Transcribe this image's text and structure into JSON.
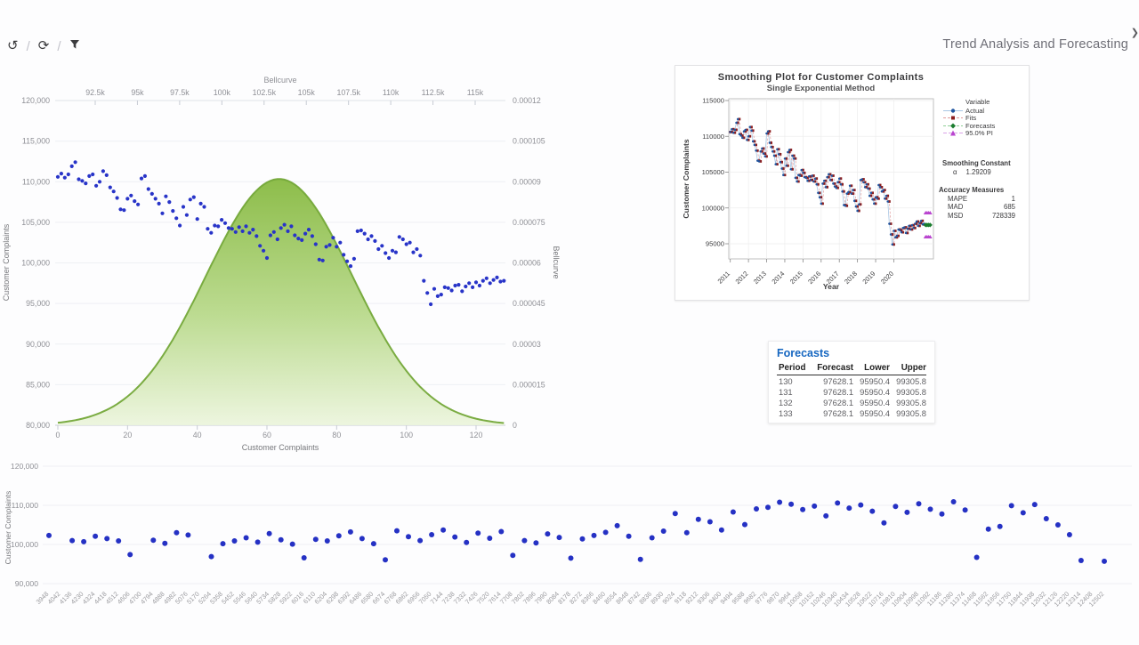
{
  "header": {
    "title": "Trend Analysis and Forecasting",
    "corner_glyph": "❯"
  },
  "toolbar": {
    "separator": "/",
    "buttons": [
      {
        "name": "reset-view",
        "glyph": "↺"
      },
      {
        "name": "refresh",
        "glyph": "⟳"
      },
      {
        "name": "filter",
        "glyph": ""
      }
    ]
  },
  "colors": {
    "dot_blue": "#2834c8",
    "grid": "#eef0f4",
    "axis_line": "#c8ccd4",
    "tick_text": "#8f9096",
    "axis_title": "#77787c",
    "bell_stroke": "#74a839",
    "bell_top": "#86b93f",
    "bell_mid": "#b8d98a",
    "bell_bottom": "#ecf5dd",
    "actual_marker": "#1f55a0",
    "actual_line": "#a9c7e4",
    "fits_marker": "#8c1d1d",
    "fits_line": "#e09c9c",
    "forecast_marker": "#1b7d2f",
    "forecast_line": "#8fcf96",
    "pi_marker": "#b944cf",
    "pi_line": "#dba3e8",
    "table_title_blue": "#1566c0"
  },
  "complaints_series": {
    "x_start": 0,
    "values": [
      110600,
      111000,
      110500,
      110900,
      111900,
      112400,
      110300,
      110100,
      109800,
      110700,
      110900,
      109500,
      110000,
      111300,
      110800,
      109300,
      108800,
      108000,
      106600,
      106500,
      107900,
      108300,
      107600,
      107200,
      110400,
      110700,
      109100,
      108500,
      107900,
      107300,
      106100,
      108200,
      107500,
      106400,
      105500,
      104600,
      106900,
      105900,
      107800,
      108100,
      105400,
      107300,
      106900,
      104200,
      103700,
      104600,
      104500,
      105300,
      104900,
      104300,
      104200,
      103800,
      104400,
      103900,
      104500,
      103700,
      104100,
      103300,
      102100,
      101500,
      100600,
      103400,
      103800,
      102900,
      104300,
      104700,
      103900,
      104500,
      103400,
      103000,
      102800,
      103600,
      104100,
      103300,
      102300,
      100400,
      100300,
      102000,
      102200,
      103100,
      102000,
      102500,
      101000,
      100200,
      99600,
      100500,
      103900,
      104000,
      103600,
      102900,
      103300,
      102700,
      101700,
      102100,
      101200,
      100600,
      101500,
      101300,
      103200,
      102900,
      102300,
      102500,
      101300,
      101700,
      100900,
      97800,
      96300,
      94900,
      96800,
      95900,
      96100,
      97000,
      96900,
      96600,
      97200,
      97300,
      96500,
      97100,
      97500,
      97000,
      97600,
      97200,
      97800,
      98100,
      97500,
      97900,
      98200,
      97700,
      97800
    ]
  },
  "chart_data": [
    {
      "type": "scatter",
      "name": "complaints-with-bellcurve",
      "series_source": "complaints_series",
      "bellcurve": {
        "mean": 63.5,
        "sd": 21,
        "peak": 9.1e-05
      },
      "top_axis": {
        "label": "Bellcurve",
        "ticks": [
          {
            "label": "92.5k",
            "v": 92500
          },
          {
            "label": "95k",
            "v": 95000
          },
          {
            "label": "97.5k",
            "v": 97500
          },
          {
            "label": "100k",
            "v": 100000
          },
          {
            "label": "102.5k",
            "v": 102500
          },
          {
            "label": "105k",
            "v": 105000
          },
          {
            "label": "107.5k",
            "v": 107500
          },
          {
            "label": "110k",
            "v": 110000
          },
          {
            "label": "112.5k",
            "v": 112500
          },
          {
            "label": "115k",
            "v": 115000
          }
        ]
      },
      "left_axis": {
        "label": "Customer Complaints",
        "range": [
          80000,
          120000
        ],
        "ticks": [
          {
            "label": "120,000",
            "v": 120000
          },
          {
            "label": "115,000",
            "v": 115000
          },
          {
            "label": "110,000",
            "v": 110000
          },
          {
            "label": "105,000",
            "v": 105000
          },
          {
            "label": "100,000",
            "v": 100000
          },
          {
            "label": "95,000",
            "v": 95000
          },
          {
            "label": "90,000",
            "v": 90000
          },
          {
            "label": "85,000",
            "v": 85000
          },
          {
            "label": "80,000",
            "v": 80000
          }
        ]
      },
      "right_axis": {
        "label": "Bellcurve",
        "range": [
          0,
          0.00012
        ],
        "ticks": [
          {
            "label": "0.00012",
            "v": 0.00012
          },
          {
            "label": "0.000105",
            "v": 0.000105
          },
          {
            "label": "0.00009",
            "v": 9e-05
          },
          {
            "label": "0.000075",
            "v": 7.5e-05
          },
          {
            "label": "0.00006",
            "v": 6e-05
          },
          {
            "label": "0.000045",
            "v": 4.5e-05
          },
          {
            "label": "0.00003",
            "v": 3e-05
          },
          {
            "label": "0.000015",
            "v": 1.5e-05
          },
          {
            "label": "0",
            "v": 0
          }
        ]
      },
      "bottom_axis": {
        "label": "Customer Complaints",
        "range": [
          0,
          128
        ],
        "ticks": [
          {
            "label": "0",
            "v": 0
          },
          {
            "label": "20",
            "v": 20
          },
          {
            "label": "40",
            "v": 40
          },
          {
            "label": "60",
            "v": 60
          },
          {
            "label": "80",
            "v": 80
          },
          {
            "label": "100",
            "v": 100
          },
          {
            "label": "120",
            "v": 120
          }
        ]
      }
    },
    {
      "type": "line-scatter",
      "name": "smoothing-plot",
      "title": "Smoothing Plot for Customer Complaints",
      "subtitle": "Single Exponential Method",
      "xlabel": "Year",
      "ylabel": "Customer Complaints",
      "actual_source": "complaints_series",
      "yticks": [
        {
          "label": "115000",
          "v": 115000
        },
        {
          "label": "110000",
          "v": 110000
        },
        {
          "label": "105000",
          "v": 105000
        },
        {
          "label": "100000",
          "v": 100000
        },
        {
          "label": "95000",
          "v": 95000
        }
      ],
      "xticks": [
        {
          "label": "2011",
          "p": 1
        },
        {
          "label": "2012",
          "p": 13
        },
        {
          "label": "2013",
          "p": 25
        },
        {
          "label": "2014",
          "p": 37
        },
        {
          "label": "2015",
          "p": 49
        },
        {
          "label": "2016",
          "p": 61
        },
        {
          "label": "2017",
          "p": 73
        },
        {
          "label": "2018",
          "p": 85
        },
        {
          "label": "2019",
          "p": 97
        },
        {
          "label": "2020",
          "p": 109
        }
      ],
      "forecast": {
        "periods": [
          130,
          131,
          132,
          133
        ],
        "value": 97628.1,
        "pi_upper": 99305.8,
        "pi_lower": 95950.4
      },
      "legend": {
        "header": "Variable",
        "items": [
          {
            "label": "Actual"
          },
          {
            "label": "Fits"
          },
          {
            "label": "Forecasts"
          },
          {
            "label": "95.0% PI"
          }
        ]
      },
      "smoothing_constant": {
        "header": "Smoothing Constant",
        "alpha_symbol": "α",
        "alpha_value": "1.29209"
      },
      "accuracy": {
        "header": "Accuracy Measures",
        "rows": [
          {
            "label": "MAPE",
            "value": "1"
          },
          {
            "label": "MAD",
            "value": "685"
          },
          {
            "label": "MSD",
            "value": "728339"
          }
        ]
      }
    },
    {
      "type": "scatter",
      "name": "complaints-by-id-strip",
      "ylabel": "Customer Complaints",
      "yticks": [
        {
          "label": "120,000",
          "v": 120000
        },
        {
          "label": "110,000",
          "v": 110000
        },
        {
          "label": "100,000",
          "v": 100000
        },
        {
          "label": "90,000",
          "v": 90000
        }
      ],
      "categories": [
        "3948",
        "4042",
        "4136",
        "4230",
        "4324",
        "4418",
        "4512",
        "4606",
        "4700",
        "4794",
        "4888",
        "4982",
        "5076",
        "5170",
        "5264",
        "5358",
        "5452",
        "5546",
        "5640",
        "5734",
        "5828",
        "5922",
        "6016",
        "6110",
        "6204",
        "6298",
        "6392",
        "6486",
        "6580",
        "6674",
        "6768",
        "6862",
        "6956",
        "7050",
        "7144",
        "7238",
        "7332",
        "7426",
        "7520",
        "7614",
        "7708",
        "7802",
        "7896",
        "7990",
        "8084",
        "8178",
        "8272",
        "8366",
        "8460",
        "8554",
        "8648",
        "8742",
        "8836",
        "8930",
        "9024",
        "9118",
        "9212",
        "9306",
        "9400",
        "9494",
        "9588",
        "9682",
        "9776",
        "9870",
        "9964",
        "10058",
        "10152",
        "10246",
        "10340",
        "10434",
        "10528",
        "10622",
        "10716",
        "10810",
        "10904",
        "10998",
        "11092",
        "11186",
        "11280",
        "11374",
        "11468",
        "11562",
        "11656",
        "11750",
        "11844",
        "11938",
        "12032",
        "12126",
        "12220",
        "12314",
        "12408",
        "12502"
      ],
      "values": [
        102300,
        null,
        101000,
        100700,
        102100,
        101500,
        100900,
        97400,
        null,
        101100,
        100300,
        103000,
        102400,
        null,
        96900,
        100200,
        100900,
        101700,
        100600,
        102800,
        101200,
        100100,
        96600,
        101300,
        100900,
        102200,
        103200,
        101500,
        100200,
        96100,
        103500,
        102000,
        101000,
        102500,
        103700,
        101900,
        100500,
        102900,
        101600,
        103300,
        97200,
        101000,
        100400,
        102700,
        101800,
        96500,
        101400,
        102300,
        103100,
        104800,
        102100,
        96200,
        101700,
        103400,
        107900,
        103000,
        106400,
        105800,
        103700,
        108300,
        105100,
        109100,
        109500,
        110800,
        110300,
        108900,
        109800,
        107300,
        110600,
        109300,
        110100,
        108500,
        105500,
        109700,
        108200,
        110400,
        109000,
        107800,
        110900,
        108800,
        96700,
        103900,
        104600,
        109900,
        108100,
        110200,
        106600,
        105000,
        102500,
        95900,
        null,
        95700
      ]
    }
  ],
  "forecasts_table": {
    "title": "Forecasts",
    "columns": [
      "Period",
      "Forecast",
      "Lower",
      "Upper"
    ],
    "rows": [
      [
        "130",
        "97628.1",
        "95950.4",
        "99305.8"
      ],
      [
        "131",
        "97628.1",
        "95950.4",
        "99305.8"
      ],
      [
        "132",
        "97628.1",
        "95950.4",
        "99305.8"
      ],
      [
        "133",
        "97628.1",
        "95950.4",
        "99305.8"
      ]
    ]
  }
}
